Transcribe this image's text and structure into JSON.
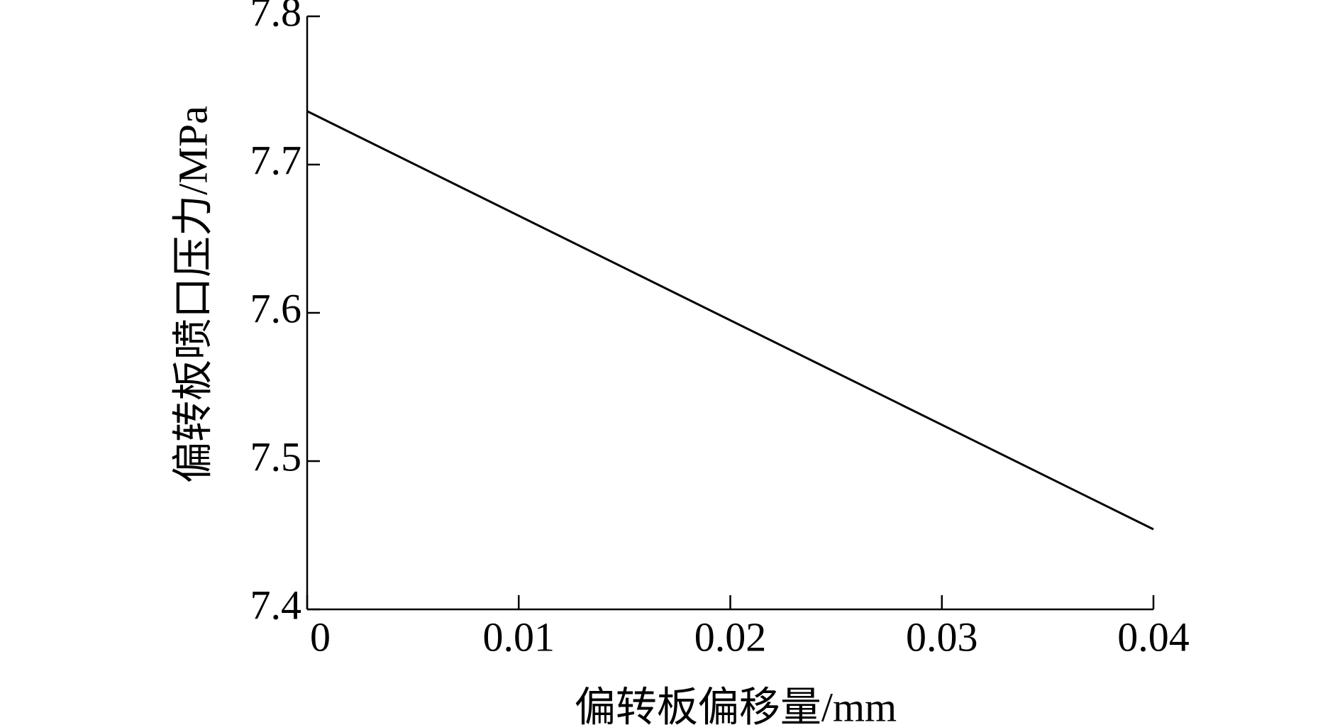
{
  "chart_data": {
    "type": "line",
    "x_label": "偏转板偏移量/mm",
    "y_label": "偏转板喷口压力/MPa",
    "x": [
      0,
      0.04
    ],
    "series": [
      {
        "color": "#000000",
        "values": [
          7.736,
          7.454
        ]
      }
    ],
    "xlim": [
      0,
      0.04
    ],
    "xticks": [
      0,
      0.01,
      0.02,
      0.03,
      0.04
    ],
    "ylim": [
      7.4,
      7.8
    ],
    "yticks": [
      7.4,
      7.5,
      7.6,
      7.7,
      7.8
    ],
    "grid": false
  }
}
